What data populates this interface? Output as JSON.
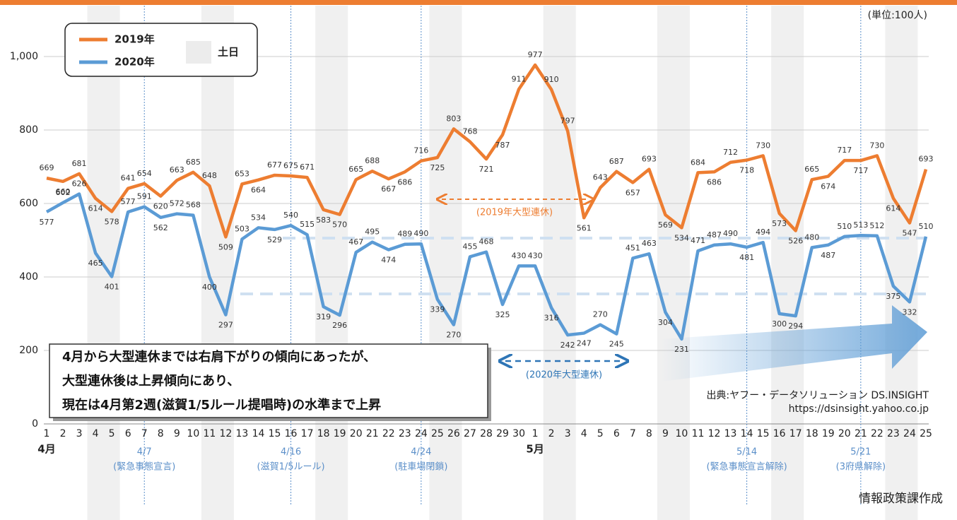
{
  "chart_data": {
    "type": "line",
    "unit_note": "(単位:100人)",
    "categories": [
      "1",
      "2",
      "3",
      "4",
      "5",
      "6",
      "7",
      "8",
      "9",
      "10",
      "11",
      "12",
      "13",
      "14",
      "15",
      "16",
      "17",
      "18",
      "19",
      "20",
      "21",
      "22",
      "23",
      "24",
      "25",
      "26",
      "27",
      "28",
      "29",
      "30",
      "1",
      "2",
      "3",
      "4",
      "5",
      "6",
      "7",
      "8",
      "9",
      "10",
      "11",
      "12",
      "13",
      "14",
      "15",
      "16",
      "17",
      "18",
      "19",
      "20",
      "21",
      "22",
      "23",
      "24",
      "25"
    ],
    "months": [
      "4月",
      "5月"
    ],
    "series": [
      {
        "name": "2019年",
        "color": "#ed7d31",
        "values": [
          669,
          660,
          681,
          614,
          578,
          641,
          654,
          620,
          663,
          685,
          648,
          509,
          653,
          664,
          677,
          675,
          671,
          583,
          570,
          665,
          688,
          667,
          686,
          716,
          725,
          803,
          768,
          721,
          787,
          911,
          977,
          910,
          797,
          561,
          643,
          687,
          657,
          693,
          569,
          534,
          684,
          686,
          712,
          718,
          730,
          573,
          526,
          665,
          674,
          717,
          717,
          730,
          614,
          547,
          693
        ]
      },
      {
        "name": "2020年",
        "color": "#5b9bd5",
        "values": [
          577,
          602,
          626,
          465,
          401,
          577,
          591,
          562,
          572,
          568,
          400,
          297,
          503,
          534,
          529,
          540,
          515,
          319,
          296,
          467,
          495,
          474,
          489,
          490,
          339,
          270,
          455,
          468,
          325,
          430,
          430,
          316,
          242,
          247,
          270,
          245,
          451,
          463,
          304,
          231,
          471,
          487,
          490,
          481,
          494,
          300,
          294,
          480,
          487,
          510,
          513,
          512,
          375,
          332,
          510
        ]
      }
    ],
    "ylim": [
      0,
      1150
    ],
    "yticks": [
      0,
      200,
      400,
      600,
      800,
      {
        "value": 1000,
        "label": "1,000"
      }
    ],
    "grid": true,
    "weekend_label": "土日",
    "events": [
      {
        "date": "4/7",
        "note": "(緊急事態宣言)"
      },
      {
        "date": "4/16",
        "note": "(滋賀1/5ルール)"
      },
      {
        "date": "4/24",
        "note": "(駐車場閉鎖)"
      },
      {
        "date": "5/14",
        "note": "(緊急事態宣言解除)"
      },
      {
        "date": "5/21",
        "note": "(3府県解除)"
      }
    ],
    "holidays": [
      "(2019年大型連休)",
      "(2020年大型連休)"
    ],
    "note_lines": [
      "4月から大型連休までは右肩下がりの傾向にあったが、",
      "大型連休後は上昇傾向にあり、",
      "現在は4月第2週(滋賀1/5ルール提唱時)の水準まで上昇"
    ],
    "source_lines": [
      "出典:ヤフー・データソリューション DS.INSIGHT",
      "https://dsinsight.yahoo.co.jp"
    ],
    "credit": "情報政策課作成"
  }
}
